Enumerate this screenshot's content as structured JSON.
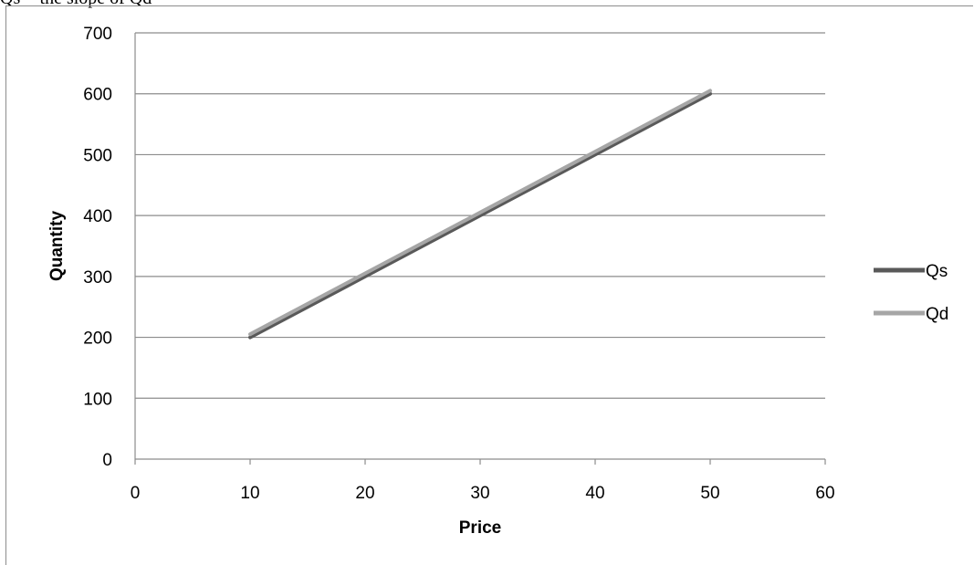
{
  "header_text": "Qs = the slope of Qd",
  "chart_data": {
    "type": "line",
    "title": "",
    "xlabel": "Price",
    "ylabel": "Quantity",
    "xlim": [
      0,
      60
    ],
    "ylim": [
      0,
      700
    ],
    "x_ticks": [
      0,
      10,
      20,
      30,
      40,
      50,
      60
    ],
    "y_ticks": [
      0,
      100,
      200,
      300,
      400,
      500,
      600,
      700
    ],
    "grid": "horizontal",
    "legend_position": "right",
    "series": [
      {
        "name": "Qs",
        "color": "#595959",
        "x": [
          10,
          20,
          30,
          40,
          50
        ],
        "y": [
          200,
          300,
          400,
          500,
          600
        ]
      },
      {
        "name": "Qd",
        "color": "#a6a6a6",
        "x": [
          10,
          20,
          30,
          40,
          50
        ],
        "y": [
          205,
          305,
          405,
          505,
          605
        ]
      }
    ]
  }
}
